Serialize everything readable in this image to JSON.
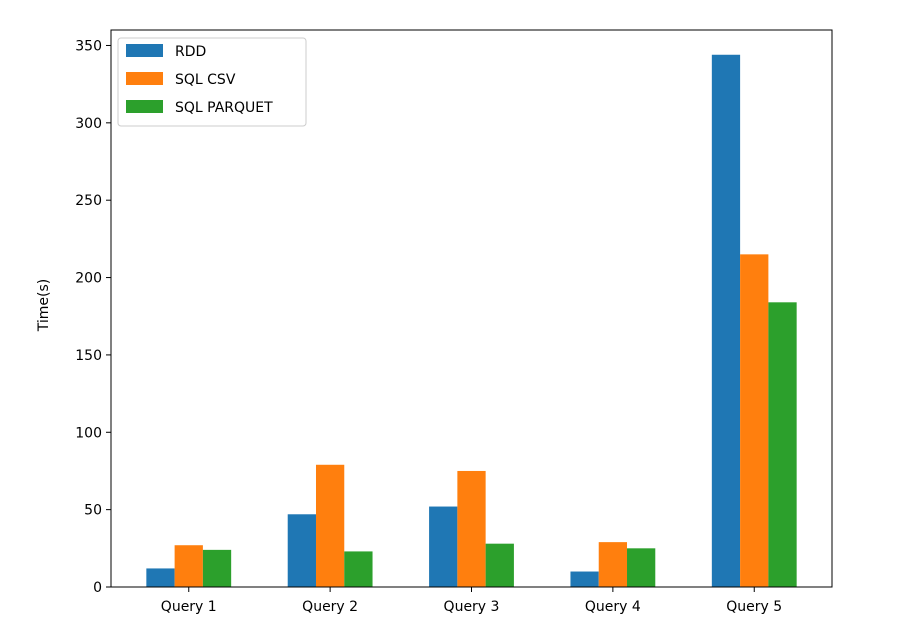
{
  "chart_data": {
    "type": "bar",
    "title": "",
    "xlabel": "",
    "ylabel": "Time(s)",
    "ylim": [
      0,
      360
    ],
    "yticks": [
      0,
      50,
      100,
      150,
      200,
      250,
      300,
      350
    ],
    "categories": [
      "Query 1",
      "Query 2",
      "Query 3",
      "Query 4",
      "Query 5"
    ],
    "series": [
      {
        "name": "RDD",
        "color": "#1f77b4",
        "values": [
          12,
          47,
          52,
          10,
          344
        ]
      },
      {
        "name": "SQL CSV",
        "color": "#ff7f0e",
        "values": [
          27,
          79,
          75,
          29,
          215
        ]
      },
      {
        "name": "SQL PARQUET",
        "color": "#2ca02c",
        "values": [
          24,
          23,
          28,
          25,
          184
        ]
      }
    ],
    "legend_position": "top-left",
    "grid": false
  }
}
